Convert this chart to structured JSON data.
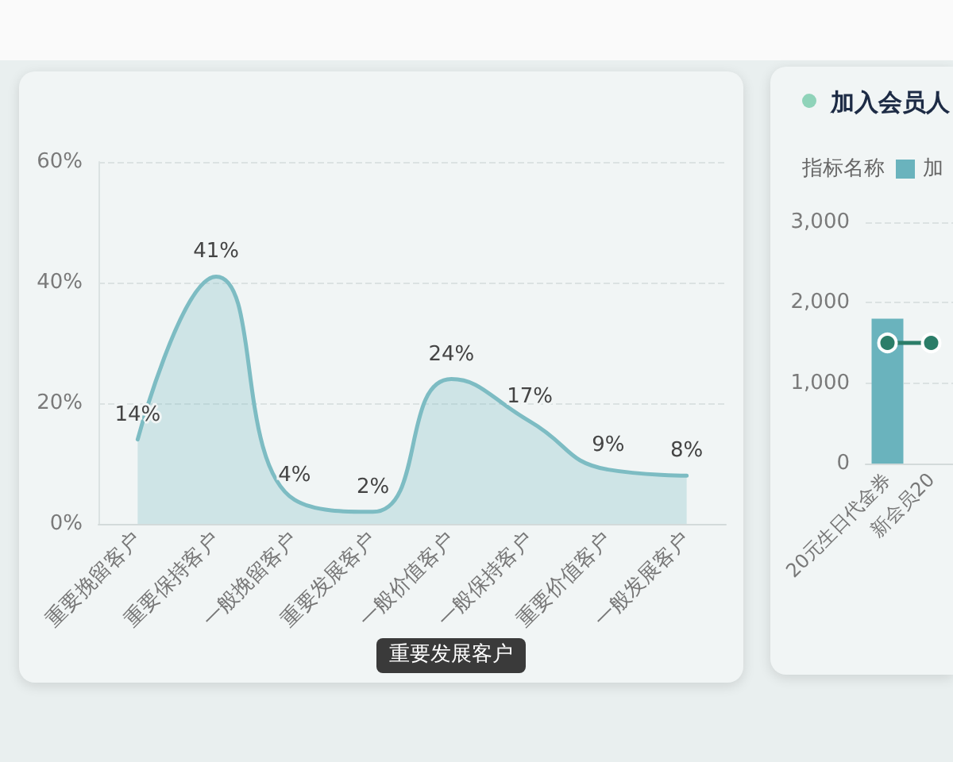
{
  "chart_data": [
    {
      "type": "area",
      "categories": [
        "重要挽留客户",
        "重要保持客户",
        "一般挽留客户",
        "重要发展客户",
        "一般价值客户",
        "一般保持客户",
        "重要价值客户",
        "一般发展客户"
      ],
      "values": [
        14,
        41,
        4,
        2,
        24,
        17,
        9,
        8
      ],
      "value_labels": [
        "14%",
        "41%",
        "4%",
        "2%",
        "24%",
        "17%",
        "9%",
        "8%"
      ],
      "color": "#7dbcc3",
      "ylim": [
        0,
        60
      ],
      "yticks": [
        {
          "value": 0,
          "label": "0%"
        },
        {
          "value": 20,
          "label": "20%"
        },
        {
          "value": 40,
          "label": "40%"
        },
        {
          "value": 60,
          "label": "60%"
        }
      ],
      "grid": "y",
      "annotations": [
        "重要发展客户"
      ]
    },
    {
      "type": "bar",
      "title": "加入会员人",
      "legend_title": "指标名称",
      "categories": [
        "20元生日代金券",
        "新会员20"
      ],
      "series": [
        {
          "name": "加",
          "color": "#6ab3bd",
          "values": [
            1800,
            null
          ]
        },
        {
          "type": "line",
          "color": "#2b7d68",
          "values": [
            1500,
            1500
          ]
        }
      ],
      "ylim": [
        0,
        3000
      ],
      "yticks": [
        0,
        {
          "value": 1000,
          "label": "1,000"
        },
        {
          "value": 2000,
          "label": "2,000"
        },
        {
          "value": 3000,
          "label": "3,000"
        }
      ],
      "grid": "y",
      "legend": "top right",
      "marker": "circle"
    }
  ]
}
